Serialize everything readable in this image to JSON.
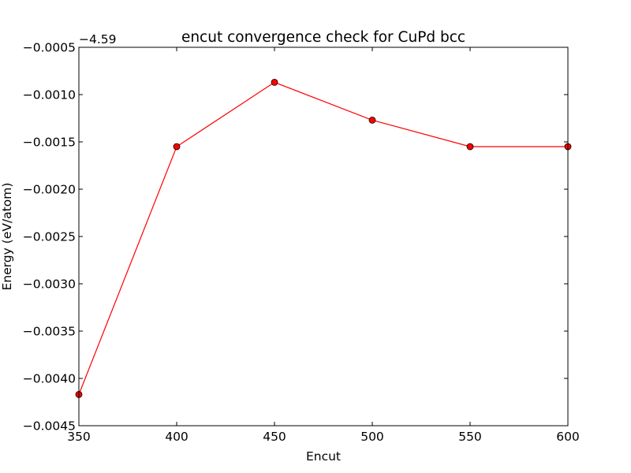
{
  "chart_data": {
    "type": "line",
    "title": "encut convergence check for CuPd bcc",
    "xlabel": "Encut",
    "ylabel": "Energy (eV/atom)",
    "y_offset_label": "−4.59",
    "xlim": [
      350,
      600
    ],
    "ylim": [
      -0.0045,
      -0.0005
    ],
    "x_ticks": [
      350,
      400,
      450,
      500,
      550,
      600
    ],
    "x_tick_labels": [
      "350",
      "400",
      "450",
      "500",
      "550",
      "600"
    ],
    "y_ticks": [
      -0.0045,
      -0.004,
      -0.0035,
      -0.003,
      -0.0025,
      -0.002,
      -0.0015,
      -0.001,
      -0.0005
    ],
    "y_tick_labels": [
      "−0.0045",
      "−0.0040",
      "−0.0035",
      "−0.0030",
      "−0.0025",
      "−0.0020",
      "−0.0015",
      "−0.0010",
      "−0.0005"
    ],
    "grid": false,
    "series": [
      {
        "color": "#ff0000",
        "marker": "circle",
        "x": [
          350,
          400,
          450,
          500,
          550,
          600
        ],
        "y": [
          -0.00417,
          -0.00155,
          -0.00087,
          -0.00127,
          -0.00155,
          -0.00155
        ]
      }
    ]
  }
}
